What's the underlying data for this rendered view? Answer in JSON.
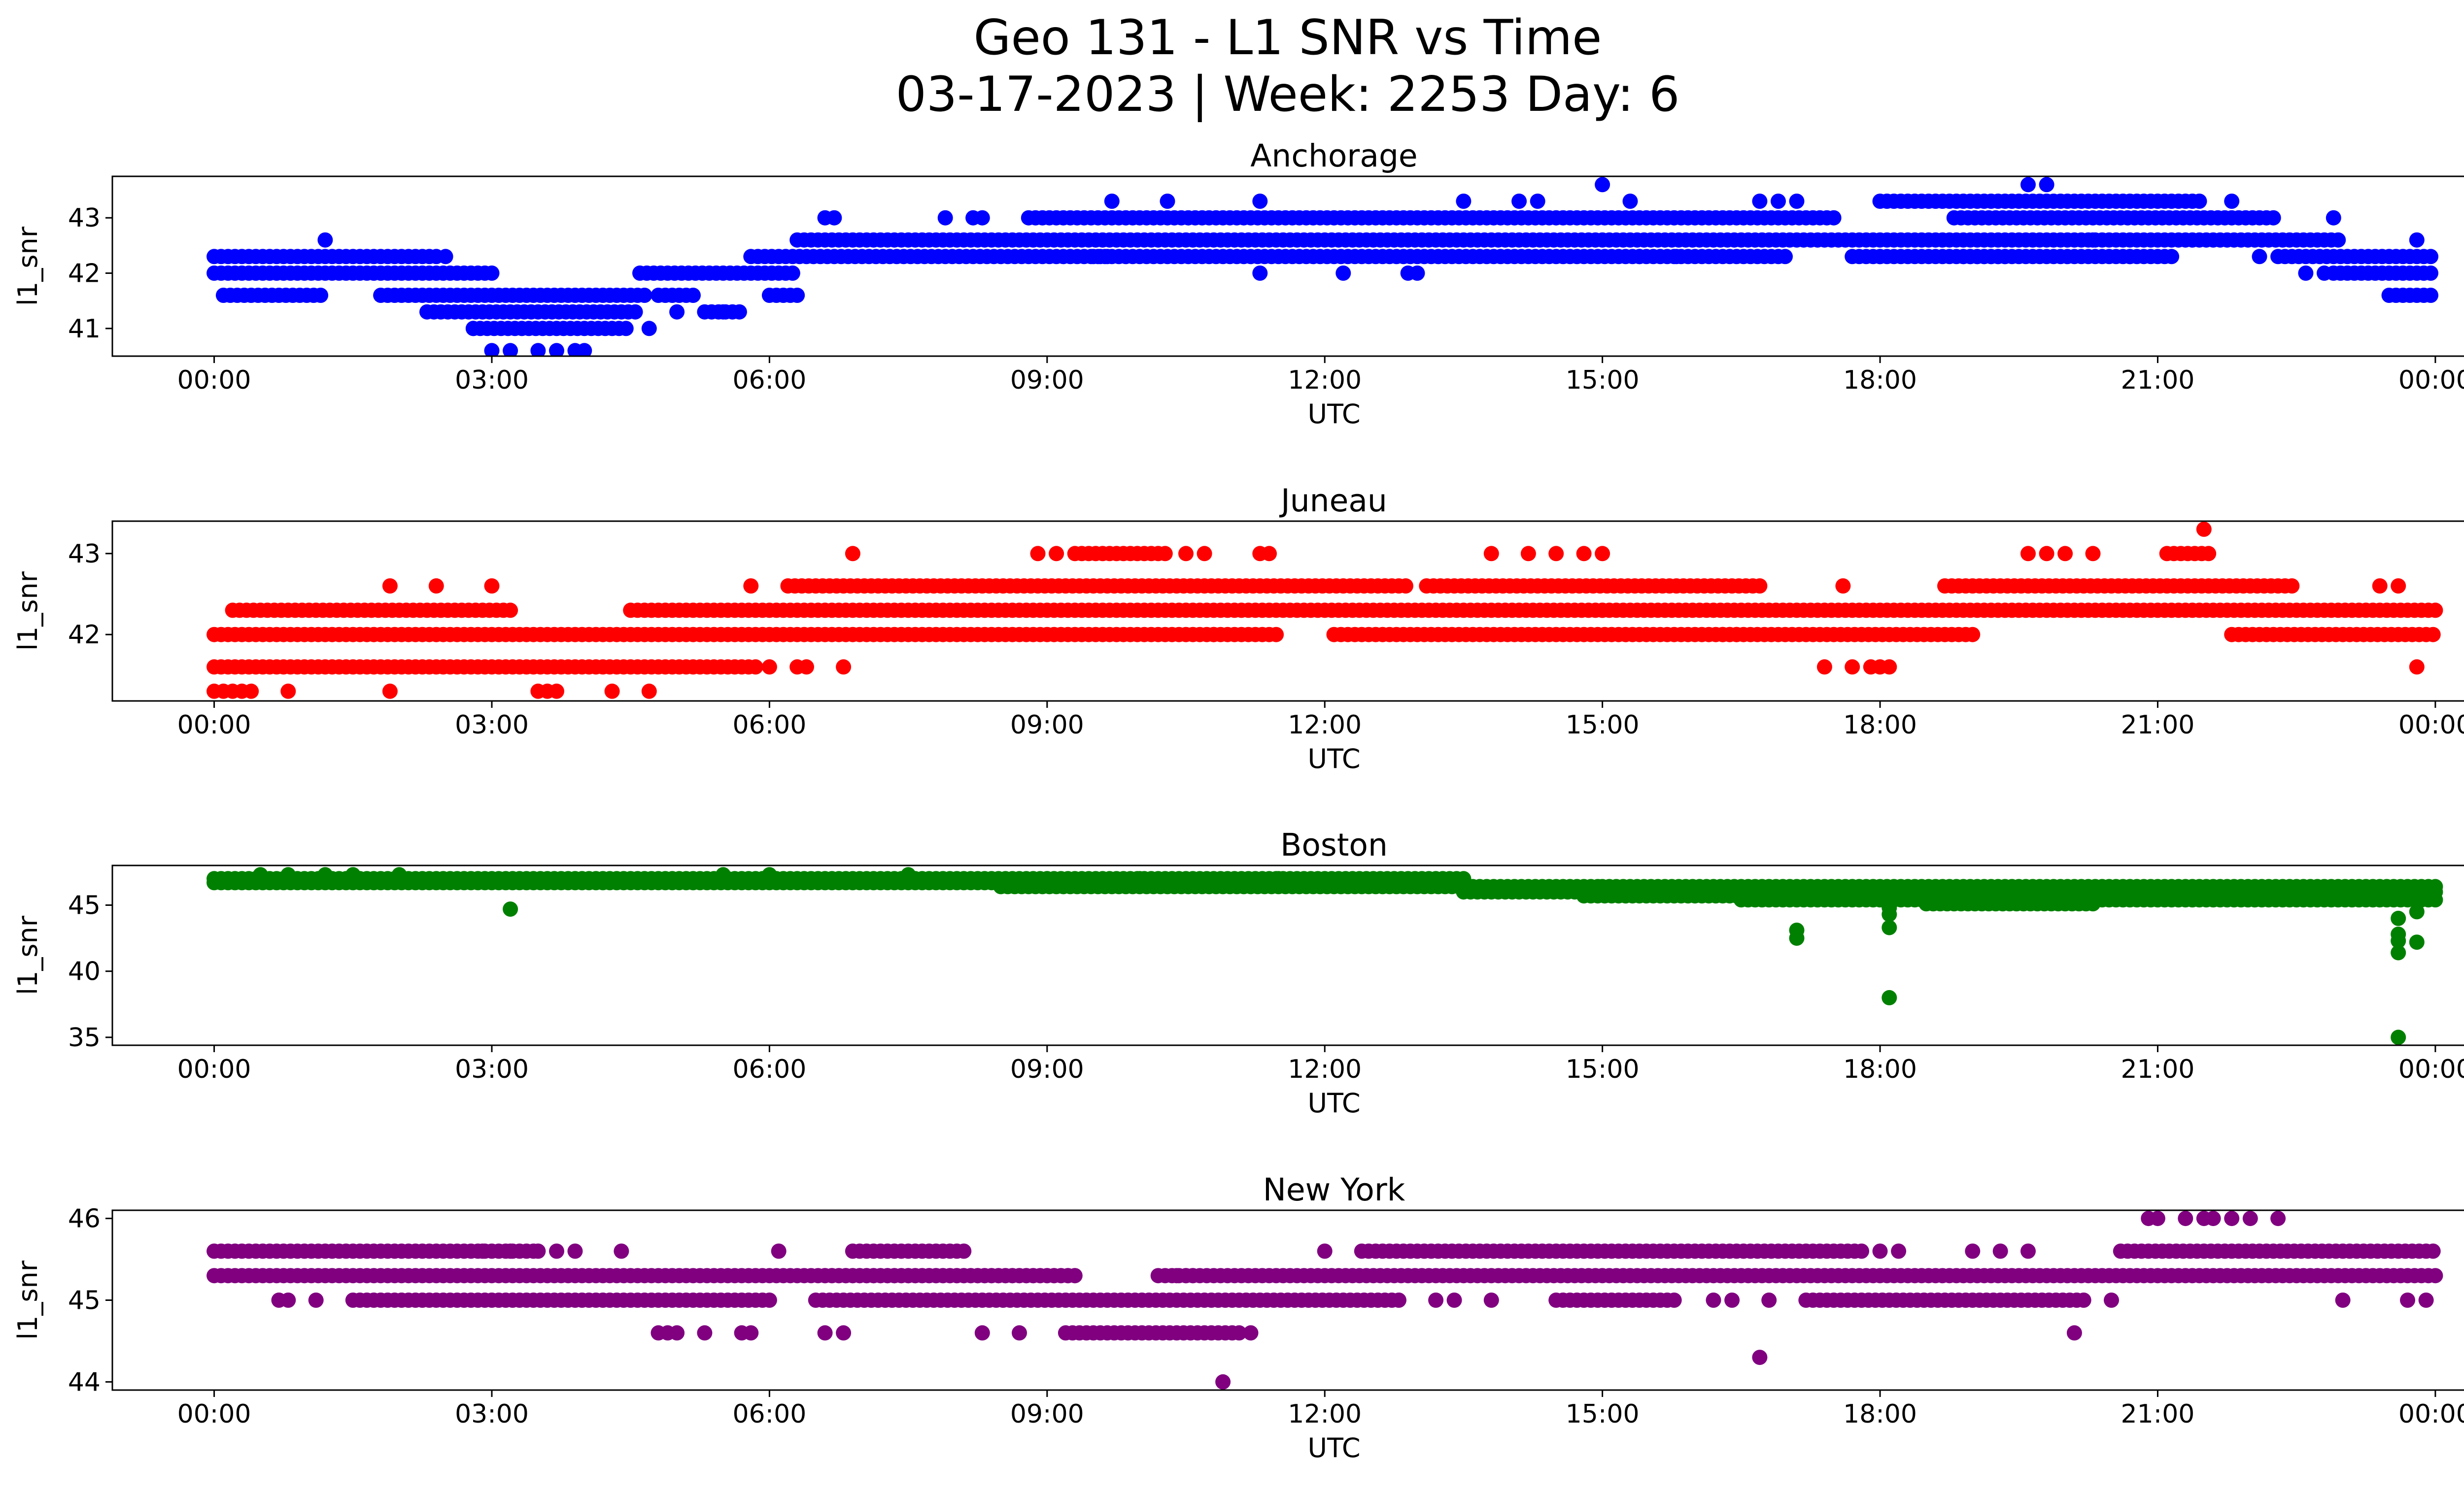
{
  "figure": {
    "title_line1": "Geo 131 - L1 SNR vs Time",
    "title_line2": "03-17-2023 | Week: 2253 Day: 6"
  },
  "chart_data": [
    {
      "type": "scatter",
      "title": "Anchorage",
      "xlabel": "UTC",
      "ylabel": "l1_snr",
      "color": "#0000ff",
      "xlim_hours": [
        -1.1,
        25.3
      ],
      "ylim": [
        40.5,
        43.75
      ],
      "x_ticks": [
        "00:00",
        "03:00",
        "06:00",
        "09:00",
        "12:00",
        "15:00",
        "18:00",
        "21:00",
        "00:00"
      ],
      "y_ticks": [
        41,
        42,
        43
      ],
      "y_tick_labels": [
        "41",
        "42",
        "43"
      ],
      "bands": [
        {
          "y": 42.3,
          "segments": [
            [
              0.0,
              2.4
            ],
            [
              9.5,
              9.7
            ],
            [
              17.7,
              19.4
            ],
            [
              22.3,
              24.0
            ]
          ]
        },
        {
          "y": 42.0,
          "segments": [
            [
              0.0,
              3.0
            ],
            [
              4.6,
              6.3
            ],
            [
              22.9,
              24.0
            ]
          ]
        },
        {
          "y": 41.6,
          "segments": [
            [
              0.1,
              1.2
            ],
            [
              1.8,
              4.7
            ],
            [
              6.0,
              6.3
            ],
            [
              23.5,
              24.0
            ]
          ]
        },
        {
          "y": 41.3,
          "segments": [
            [
              2.3,
              4.6
            ],
            [
              5.3,
              5.7
            ]
          ]
        },
        {
          "y": 41.0,
          "segments": [
            [
              2.8,
              4.5
            ]
          ]
        },
        {
          "y": 42.6,
          "segments": [
            [
              6.3,
              23.0
            ]
          ]
        },
        {
          "y": 42.3,
          "segments": [
            [
              5.8,
              17.0
            ],
            [
              18.9,
              21.2
            ]
          ]
        },
        {
          "y": 43.0,
          "segments": [
            [
              8.8,
              17.5
            ],
            [
              18.8,
              22.3
            ]
          ]
        },
        {
          "y": 43.3,
          "segments": [
            [
              18.0,
              21.5
            ]
          ]
        },
        {
          "y": 41.6,
          "segments": [
            [
              4.8,
              5.2
            ]
          ]
        }
      ],
      "points": [
        [
          1.2,
          42.6
        ],
        [
          2.5,
          42.3
        ],
        [
          2.8,
          41.0
        ],
        [
          3.0,
          40.6
        ],
        [
          3.2,
          40.6
        ],
        [
          3.5,
          40.6
        ],
        [
          3.7,
          40.6
        ],
        [
          3.9,
          40.6
        ],
        [
          4.0,
          40.6
        ],
        [
          4.7,
          41.0
        ],
        [
          5.0,
          41.3
        ],
        [
          5.5,
          41.3
        ],
        [
          6.6,
          43.0
        ],
        [
          6.7,
          43.0
        ],
        [
          7.9,
          43.0
        ],
        [
          8.2,
          43.0
        ],
        [
          8.3,
          43.0
        ],
        [
          9.7,
          43.3
        ],
        [
          10.3,
          43.3
        ],
        [
          11.3,
          43.3
        ],
        [
          11.3,
          42.0
        ],
        [
          12.2,
          42.0
        ],
        [
          12.9,
          42.0
        ],
        [
          13.0,
          42.0
        ],
        [
          13.5,
          43.3
        ],
        [
          14.1,
          43.3
        ],
        [
          14.3,
          43.3
        ],
        [
          15.0,
          43.6
        ],
        [
          15.3,
          43.3
        ],
        [
          15.4,
          42.3
        ],
        [
          15.8,
          42.3
        ],
        [
          16.7,
          43.3
        ],
        [
          16.9,
          43.3
        ],
        [
          17.1,
          43.3
        ],
        [
          18.0,
          42.3
        ],
        [
          19.6,
          43.6
        ],
        [
          19.8,
          43.6
        ],
        [
          20.3,
          42.6
        ],
        [
          20.7,
          42.3
        ],
        [
          21.8,
          43.3
        ],
        [
          22.1,
          42.3
        ],
        [
          22.6,
          42.0
        ],
        [
          22.8,
          42.0
        ],
        [
          22.9,
          43.0
        ],
        [
          23.8,
          42.6
        ]
      ]
    },
    {
      "type": "scatter",
      "title": "Juneau",
      "xlabel": "UTC",
      "ylabel": "l1_snr",
      "color": "#ff0000",
      "xlim_hours": [
        -1.1,
        25.3
      ],
      "ylim": [
        41.18,
        43.4
      ],
      "x_ticks": [
        "00:00",
        "03:00",
        "06:00",
        "09:00",
        "12:00",
        "15:00",
        "18:00",
        "21:00",
        "00:00"
      ],
      "y_ticks": [
        42,
        43
      ],
      "y_tick_labels": [
        "42",
        "43"
      ],
      "bands": [
        {
          "y": 42.0,
          "segments": [
            [
              0.0,
              11.5
            ],
            [
              12.1,
              16.5
            ],
            [
              16.3,
              19.0
            ],
            [
              21.8,
              24.0
            ]
          ]
        },
        {
          "y": 42.3,
          "segments": [
            [
              0.2,
              3.2
            ],
            [
              4.5,
              15.0
            ],
            [
              15.0,
              24.0
            ]
          ]
        },
        {
          "y": 41.6,
          "segments": [
            [
              0.0,
              5.9
            ]
          ]
        },
        {
          "y": 42.6,
          "segments": [
            [
              6.2,
              12.9
            ],
            [
              13.1,
              16.7
            ],
            [
              18.7,
              22.5
            ]
          ]
        },
        {
          "y": 43.0,
          "segments": [
            [
              9.3,
              10.3
            ],
            [
              21.1,
              21.6
            ]
          ]
        }
      ],
      "points": [
        [
          0.0,
          41.3
        ],
        [
          0.1,
          41.3
        ],
        [
          0.2,
          41.3
        ],
        [
          0.3,
          41.3
        ],
        [
          0.4,
          41.3
        ],
        [
          0.8,
          41.3
        ],
        [
          1.9,
          41.3
        ],
        [
          1.9,
          42.6
        ],
        [
          2.4,
          42.6
        ],
        [
          3.0,
          42.6
        ],
        [
          3.5,
          41.3
        ],
        [
          3.6,
          41.3
        ],
        [
          3.7,
          41.3
        ],
        [
          4.3,
          41.3
        ],
        [
          4.7,
          41.3
        ],
        [
          5.8,
          42.6
        ],
        [
          6.0,
          41.6
        ],
        [
          6.3,
          41.6
        ],
        [
          6.4,
          41.6
        ],
        [
          6.8,
          41.6
        ],
        [
          6.9,
          43.0
        ],
        [
          8.9,
          43.0
        ],
        [
          9.1,
          43.0
        ],
        [
          10.5,
          43.0
        ],
        [
          10.7,
          43.0
        ],
        [
          10.8,
          42.0
        ],
        [
          11.3,
          43.0
        ],
        [
          11.4,
          43.0
        ],
        [
          13.8,
          43.0
        ],
        [
          14.2,
          43.0
        ],
        [
          14.5,
          43.0
        ],
        [
          14.8,
          43.0
        ],
        [
          15.0,
          43.0
        ],
        [
          17.4,
          41.6
        ],
        [
          17.6,
          42.6
        ],
        [
          17.7,
          41.6
        ],
        [
          17.9,
          41.6
        ],
        [
          18.0,
          41.6
        ],
        [
          18.1,
          41.6
        ],
        [
          19.6,
          43.0
        ],
        [
          19.8,
          43.0
        ],
        [
          20.0,
          43.0
        ],
        [
          20.3,
          43.0
        ],
        [
          21.5,
          43.3
        ],
        [
          23.4,
          42.6
        ],
        [
          23.6,
          42.6
        ],
        [
          23.8,
          41.6
        ]
      ]
    },
    {
      "type": "scatter",
      "title": "Boston",
      "xlabel": "UTC",
      "ylabel": "l1_snr",
      "color": "#008000",
      "xlim_hours": [
        -1.1,
        25.3
      ],
      "ylim": [
        34.4,
        48.0
      ],
      "x_ticks": [
        "00:00",
        "03:00",
        "06:00",
        "09:00",
        "12:00",
        "15:00",
        "18:00",
        "21:00",
        "00:00"
      ],
      "y_ticks": [
        35,
        40,
        45
      ],
      "y_tick_labels": [
        "35",
        "40",
        "45"
      ],
      "bands": [
        {
          "y": 47.0,
          "segments": [
            [
              0.0,
              9.0
            ],
            [
              9.0,
              13.5
            ]
          ]
        },
        {
          "y": 46.7,
          "segments": [
            [
              0.0,
              13.0
            ]
          ]
        },
        {
          "y": 46.4,
          "segments": [
            [
              8.5,
              15.0
            ],
            [
              15.0,
              24.0
            ]
          ]
        },
        {
          "y": 46.0,
          "segments": [
            [
              13.5,
              24.0
            ]
          ]
        },
        {
          "y": 45.7,
          "segments": [
            [
              14.8,
              24.0
            ]
          ]
        },
        {
          "y": 45.4,
          "segments": [
            [
              16.5,
              24.0
            ]
          ]
        },
        {
          "y": 45.1,
          "segments": [
            [
              18.5,
              20.3
            ]
          ]
        }
      ],
      "points": [
        [
          0.5,
          47.3
        ],
        [
          0.8,
          47.3
        ],
        [
          1.2,
          47.3
        ],
        [
          1.5,
          47.3
        ],
        [
          2.0,
          47.3
        ],
        [
          5.5,
          47.3
        ],
        [
          6.0,
          47.3
        ],
        [
          7.5,
          47.3
        ],
        [
          10.0,
          47.0
        ],
        [
          11.5,
          47.0
        ],
        [
          3.2,
          44.7
        ],
        [
          17.1,
          43.1
        ],
        [
          17.1,
          42.5
        ],
        [
          18.1,
          44.8
        ],
        [
          18.1,
          44.3
        ],
        [
          18.1,
          43.3
        ],
        [
          18.1,
          38.0
        ],
        [
          23.6,
          44.0
        ],
        [
          23.6,
          42.8
        ],
        [
          23.6,
          42.3
        ],
        [
          23.6,
          41.4
        ],
        [
          23.6,
          35.0
        ],
        [
          23.8,
          44.5
        ],
        [
          23.8,
          42.2
        ]
      ]
    },
    {
      "type": "scatter",
      "title": "New York",
      "xlabel": "UTC",
      "ylabel": "l1_snr",
      "color": "#800080",
      "xlim_hours": [
        -1.1,
        25.3
      ],
      "ylim": [
        43.9,
        46.1
      ],
      "x_ticks": [
        "00:00",
        "03:00",
        "06:00",
        "09:00",
        "12:00",
        "15:00",
        "18:00",
        "21:00",
        "00:00"
      ],
      "y_ticks": [
        44,
        45,
        46
      ],
      "y_tick_labels": [
        "44",
        "45",
        "46"
      ],
      "bands": [
        {
          "y": 45.6,
          "segments": [
            [
              0.0,
              3.5
            ],
            [
              6.9,
              8.1
            ],
            [
              12.4,
              17.8
            ],
            [
              20.6,
              24.0
            ]
          ]
        },
        {
          "y": 45.3,
          "segments": [
            [
              0.0,
              9.3
            ],
            [
              6.6,
              9.3
            ],
            [
              10.2,
              10.6
            ],
            [
              10.5,
              24.0
            ]
          ]
        },
        {
          "y": 45.0,
          "segments": [
            [
              1.5,
              6.0
            ],
            [
              6.5,
              12.8
            ],
            [
              14.5,
              15.8
            ],
            [
              17.2,
              20.2
            ]
          ]
        },
        {
          "y": 44.6,
          "segments": [
            [
              9.2,
              11.1
            ]
          ]
        }
      ],
      "points": [
        [
          0.7,
          45.0
        ],
        [
          0.8,
          45.0
        ],
        [
          1.1,
          45.0
        ],
        [
          2.9,
          45.6
        ],
        [
          3.2,
          45.6
        ],
        [
          3.5,
          45.6
        ],
        [
          3.7,
          45.6
        ],
        [
          3.9,
          45.6
        ],
        [
          4.4,
          45.6
        ],
        [
          4.8,
          44.6
        ],
        [
          4.9,
          44.6
        ],
        [
          5.0,
          44.6
        ],
        [
          5.3,
          44.6
        ],
        [
          5.7,
          44.6
        ],
        [
          5.8,
          44.6
        ],
        [
          6.1,
          45.6
        ],
        [
          6.6,
          44.6
        ],
        [
          6.8,
          44.6
        ],
        [
          8.3,
          44.6
        ],
        [
          8.7,
          44.6
        ],
        [
          10.4,
          45.3
        ],
        [
          10.9,
          44.0
        ],
        [
          11.2,
          44.6
        ],
        [
          12.0,
          45.6
        ],
        [
          13.2,
          45.0
        ],
        [
          13.4,
          45.0
        ],
        [
          13.8,
          45.0
        ],
        [
          16.2,
          45.0
        ],
        [
          16.4,
          45.0
        ],
        [
          16.8,
          45.0
        ],
        [
          16.7,
          44.3
        ],
        [
          18.0,
          45.6
        ],
        [
          18.2,
          45.6
        ],
        [
          19.0,
          45.6
        ],
        [
          19.3,
          45.6
        ],
        [
          19.6,
          45.6
        ],
        [
          20.1,
          44.6
        ],
        [
          20.5,
          45.0
        ],
        [
          20.9,
          46.0
        ],
        [
          21.0,
          46.0
        ],
        [
          21.3,
          46.0
        ],
        [
          21.5,
          46.0
        ],
        [
          21.6,
          46.0
        ],
        [
          21.8,
          46.0
        ],
        [
          22.0,
          46.0
        ],
        [
          22.3,
          46.0
        ],
        [
          23.0,
          45.0
        ],
        [
          23.7,
          45.0
        ],
        [
          23.9,
          45.0
        ]
      ]
    }
  ]
}
